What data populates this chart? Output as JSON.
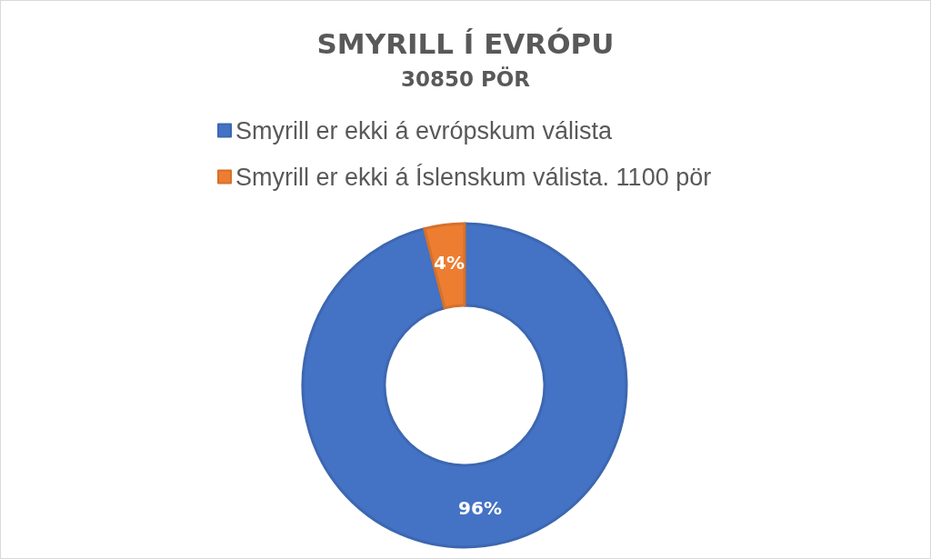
{
  "chart_data": {
    "type": "donut",
    "title": "SMYRILL Í EVRÓPU",
    "subtitle": "30850 PÖR",
    "categories": [
      "Smyrill er ekki á evrópskum válista",
      "Smyrill er ekki á Íslenskum válista. 1100 pör"
    ],
    "values": [
      96,
      4
    ],
    "colors": [
      "#4472c4",
      "#ed7d31"
    ],
    "value_labels": [
      "96%",
      "4%"
    ],
    "legend": "top"
  }
}
